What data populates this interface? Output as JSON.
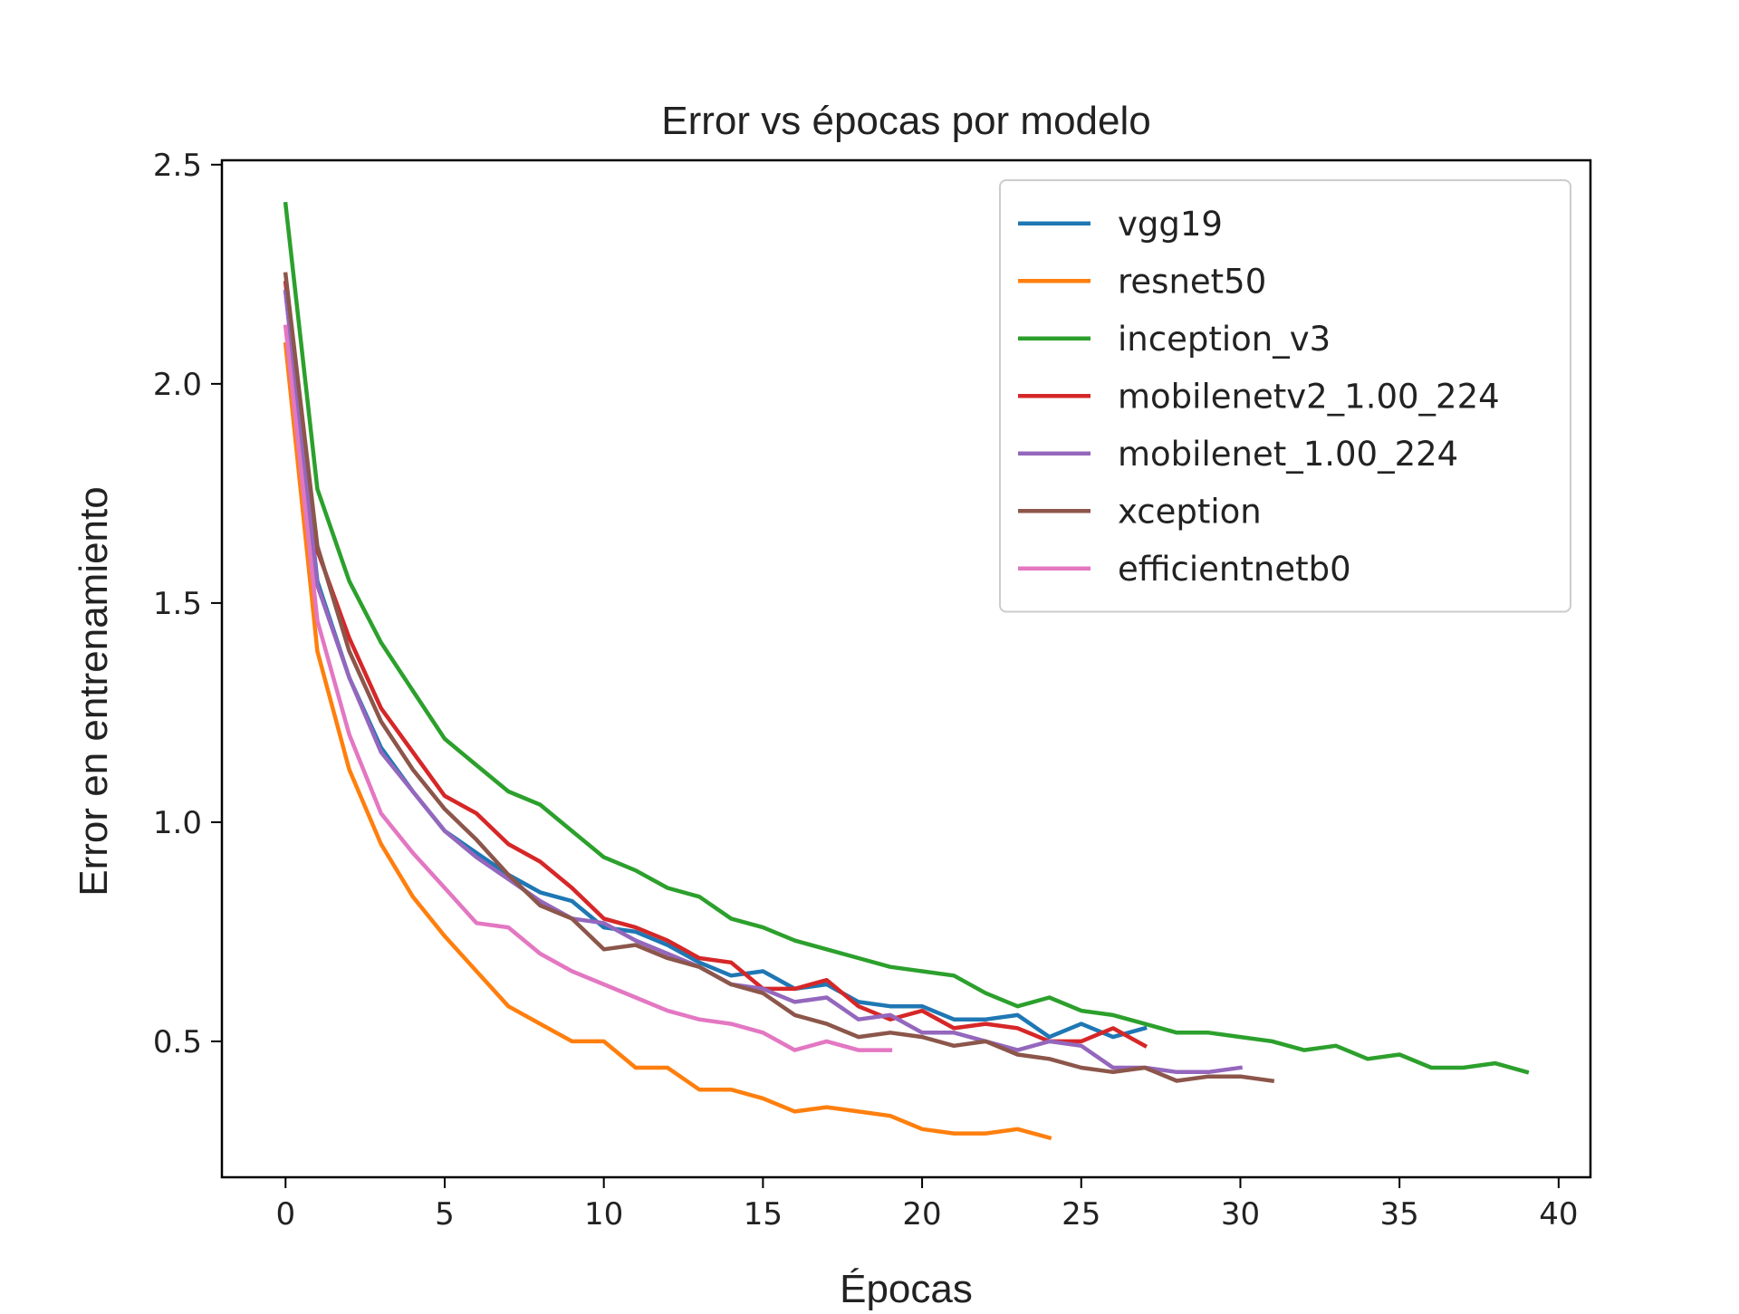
{
  "chart_data": {
    "type": "line",
    "title": "Error vs épocas por modelo",
    "xlabel": "Épocas",
    "ylabel": "Error en entrenamiento",
    "xlim": [
      -2,
      41
    ],
    "ylim": [
      0.19,
      2.51
    ],
    "xticks": [
      0,
      5,
      10,
      15,
      20,
      25,
      30,
      35,
      40
    ],
    "yticks": [
      0.5,
      1.0,
      1.5,
      2.0,
      2.5
    ],
    "xtick_labels": [
      "0",
      "5",
      "10",
      "15",
      "20",
      "25",
      "30",
      "35",
      "40"
    ],
    "ytick_labels": [
      "0.5",
      "1.0",
      "1.5",
      "2.0",
      "2.5"
    ],
    "grid": false,
    "legend_position": "top-right",
    "series": [
      {
        "name": "vgg19",
        "color": "#1f77b4",
        "values": [
          2.21,
          1.55,
          1.33,
          1.17,
          1.07,
          0.98,
          0.93,
          0.88,
          0.84,
          0.82,
          0.76,
          0.75,
          0.72,
          0.68,
          0.65,
          0.66,
          0.62,
          0.63,
          0.59,
          0.58,
          0.58,
          0.55,
          0.55,
          0.56,
          0.51,
          0.54,
          0.51,
          0.53
        ]
      },
      {
        "name": "resnet50",
        "color": "#ff7f0e",
        "values": [
          2.09,
          1.39,
          1.12,
          0.95,
          0.83,
          0.74,
          0.66,
          0.58,
          0.54,
          0.5,
          0.5,
          0.44,
          0.44,
          0.39,
          0.39,
          0.37,
          0.34,
          0.35,
          0.34,
          0.33,
          0.3,
          0.29,
          0.29,
          0.3,
          0.28
        ]
      },
      {
        "name": "inception_v3",
        "color": "#2ca02c",
        "values": [
          2.41,
          1.76,
          1.55,
          1.41,
          1.3,
          1.19,
          1.13,
          1.07,
          1.04,
          0.98,
          0.92,
          0.89,
          0.85,
          0.83,
          0.78,
          0.76,
          0.73,
          0.71,
          0.69,
          0.67,
          0.66,
          0.65,
          0.61,
          0.58,
          0.6,
          0.57,
          0.56,
          0.54,
          0.52,
          0.52,
          0.51,
          0.5,
          0.48,
          0.49,
          0.46,
          0.47,
          0.44,
          0.44,
          0.45,
          0.43
        ]
      },
      {
        "name": "mobilenetv2_1.00_224",
        "color": "#d62728",
        "values": [
          2.23,
          1.62,
          1.42,
          1.26,
          1.16,
          1.06,
          1.02,
          0.95,
          0.91,
          0.85,
          0.78,
          0.76,
          0.73,
          0.69,
          0.68,
          0.62,
          0.62,
          0.64,
          0.58,
          0.55,
          0.57,
          0.53,
          0.54,
          0.53,
          0.5,
          0.5,
          0.53,
          0.49
        ]
      },
      {
        "name": "mobilenet_1.00_224",
        "color": "#9467bd",
        "values": [
          2.21,
          1.54,
          1.33,
          1.16,
          1.07,
          0.98,
          0.92,
          0.87,
          0.82,
          0.78,
          0.77,
          0.73,
          0.7,
          0.67,
          0.63,
          0.62,
          0.59,
          0.6,
          0.55,
          0.56,
          0.52,
          0.52,
          0.5,
          0.48,
          0.5,
          0.49,
          0.44,
          0.44,
          0.43,
          0.43,
          0.44
        ]
      },
      {
        "name": "xception",
        "color": "#8c564b",
        "values": [
          2.25,
          1.63,
          1.39,
          1.23,
          1.12,
          1.03,
          0.96,
          0.88,
          0.81,
          0.78,
          0.71,
          0.72,
          0.69,
          0.67,
          0.63,
          0.61,
          0.56,
          0.54,
          0.51,
          0.52,
          0.51,
          0.49,
          0.5,
          0.47,
          0.46,
          0.44,
          0.43,
          0.44,
          0.41,
          0.42,
          0.42,
          0.41
        ]
      },
      {
        "name": "efficientnetb0",
        "color": "#e377c2",
        "values": [
          2.13,
          1.46,
          1.2,
          1.02,
          0.93,
          0.85,
          0.77,
          0.76,
          0.7,
          0.66,
          0.63,
          0.6,
          0.57,
          0.55,
          0.54,
          0.52,
          0.48,
          0.5,
          0.48,
          0.48
        ]
      }
    ]
  }
}
